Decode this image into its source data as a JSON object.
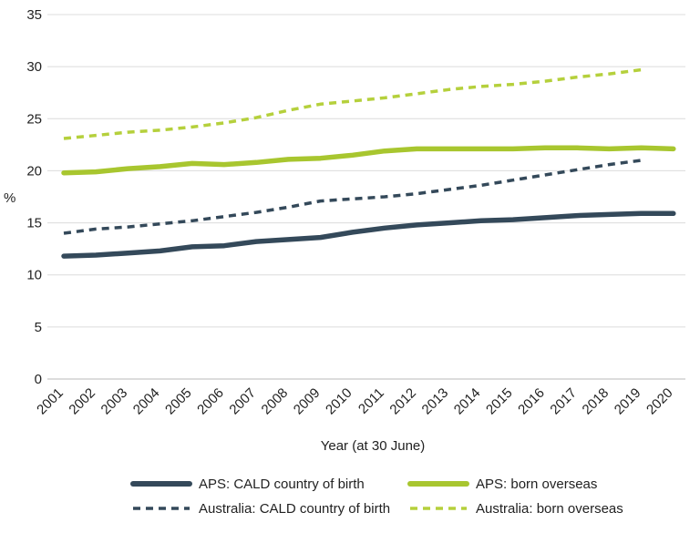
{
  "chart_data": {
    "type": "line",
    "title": "",
    "xlabel": "Year (at 30 June)",
    "ylabel": "%",
    "ylim": [
      0,
      35
    ],
    "yticks": [
      0,
      5,
      10,
      15,
      20,
      25,
      30,
      35
    ],
    "grid": "horizontal",
    "categories": [
      "2001",
      "2002",
      "2003",
      "2004",
      "2005",
      "2006",
      "2007",
      "2008",
      "2009",
      "2010",
      "2011",
      "2012",
      "2013",
      "2014",
      "2015",
      "2016",
      "2017",
      "2018",
      "2019",
      "2020"
    ],
    "series": [
      {
        "name": "APS: CALD country of birth",
        "style": "solid",
        "color": "#34495a",
        "values": [
          11.8,
          11.9,
          12.1,
          12.3,
          12.7,
          12.8,
          13.2,
          13.4,
          13.6,
          14.1,
          14.5,
          14.8,
          15.0,
          15.2,
          15.3,
          15.5,
          15.7,
          15.8,
          15.9,
          15.9
        ]
      },
      {
        "name": "APS: born overseas",
        "style": "solid",
        "color": "#a8c62f",
        "values": [
          19.8,
          19.9,
          20.2,
          20.4,
          20.7,
          20.6,
          20.8,
          21.1,
          21.2,
          21.5,
          21.9,
          22.1,
          22.1,
          22.1,
          22.1,
          22.2,
          22.2,
          22.1,
          22.2,
          22.1
        ]
      },
      {
        "name": "Australia: CALD country of birth",
        "style": "dashed",
        "color": "#34495a",
        "values": [
          14.0,
          14.4,
          14.6,
          14.9,
          15.2,
          15.6,
          16.0,
          16.5,
          17.1,
          17.3,
          17.5,
          17.8,
          18.2,
          18.6,
          19.1,
          19.6,
          20.1,
          20.6,
          21.0,
          null
        ]
      },
      {
        "name": "Australia: born overseas",
        "style": "dashed",
        "color": "#b5d03c",
        "values": [
          23.1,
          23.4,
          23.7,
          23.9,
          24.2,
          24.6,
          25.1,
          25.8,
          26.4,
          26.7,
          27.0,
          27.4,
          27.8,
          28.1,
          28.3,
          28.6,
          29.0,
          29.3,
          29.7,
          null
        ]
      }
    ],
    "legend": {
      "placement": "bottom",
      "order": [
        0,
        1,
        2,
        3
      ]
    }
  }
}
